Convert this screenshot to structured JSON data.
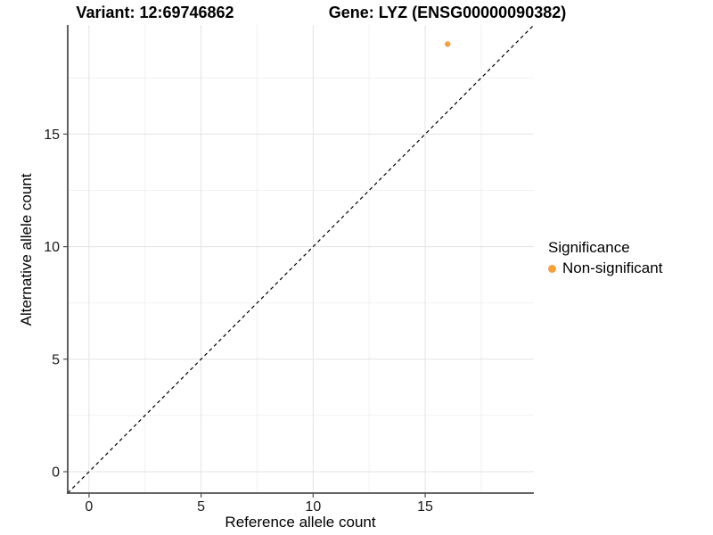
{
  "titles": {
    "variant": "Variant: 12:69746862",
    "gene": "Gene: LYZ (ENSG00000090382)"
  },
  "axes": {
    "x_label": "Reference allele count",
    "y_label": "Alternative allele count"
  },
  "legend": {
    "title": "Significance",
    "entries": [
      {
        "label": "Non-significant",
        "color": "#F8A13C"
      }
    ]
  },
  "chart_data": {
    "type": "scatter",
    "title": "Variant: 12:69746862    Gene: LYZ (ENSG00000090382)",
    "xlabel": "Reference allele count",
    "ylabel": "Alternative allele count",
    "xlim": [
      -0.95,
      19.85
    ],
    "ylim": [
      -0.95,
      19.85
    ],
    "xticks": [
      0,
      5,
      10,
      15
    ],
    "yticks": [
      0,
      5,
      10,
      15
    ],
    "x_minor_ticks": [
      2.5,
      7.5,
      12.5,
      17.5
    ],
    "y_minor_ticks": [
      2.5,
      7.5,
      12.5,
      17.5
    ],
    "grid": "major and minor gridlines, light gray on white",
    "legend_position": "right",
    "series": [
      {
        "name": "Non-significant",
        "color": "#F8A13C",
        "points": [
          {
            "x": 16,
            "y": 19
          }
        ]
      }
    ],
    "reference_line": {
      "kind": "identity (y = x)",
      "style": "dashed",
      "color": "#000000"
    }
  },
  "colors": {
    "background": "#FFFFFF",
    "grid_major": "#E3E3E3",
    "grid_minor": "#F1F1F1",
    "axis_line": "#4F4F4F",
    "tick_text": "#1A1A1A",
    "point": "#F8A13C",
    "dashed_line": "#000000"
  }
}
